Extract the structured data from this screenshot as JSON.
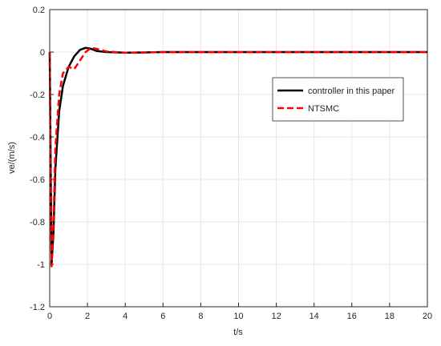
{
  "chart_data": {
    "type": "line",
    "xlabel": "t/s",
    "ylabel": "ve/(m/s)",
    "x": [
      0,
      0.05,
      0.1,
      0.2,
      0.3,
      0.5,
      0.7,
      1,
      1.3,
      1.6,
      1.9,
      2.2,
      2.5,
      3,
      4,
      5,
      6,
      10,
      20
    ],
    "series": [
      {
        "name": "controller in this paper",
        "color": "#000000",
        "dash": "solid",
        "values": [
          0,
          -0.5,
          -1.0,
          -0.85,
          -0.55,
          -0.28,
          -0.16,
          -0.07,
          -0.02,
          0.01,
          0.02,
          0.015,
          0.005,
          0,
          -0.003,
          -0.002,
          0,
          0,
          0
        ]
      },
      {
        "name": "NTSMC",
        "color": "#ff0000",
        "dash": "dashed",
        "values": [
          0,
          -0.6,
          -1.01,
          -0.8,
          -0.45,
          -0.2,
          -0.1,
          -0.07,
          -0.08,
          -0.04,
          0,
          0.02,
          0.015,
          0.003,
          -0.003,
          -0.002,
          0,
          0,
          0
        ]
      }
    ],
    "xlim": [
      0,
      20
    ],
    "xticks": [
      0,
      2,
      4,
      6,
      8,
      10,
      12,
      14,
      16,
      18,
      20
    ],
    "ylim": [
      -1.2,
      0.2
    ],
    "yticks": [
      -1.2,
      -1,
      -0.8,
      -0.6,
      -0.4,
      -0.2,
      0,
      0.2
    ],
    "grid": true,
    "legend_position": "right"
  }
}
